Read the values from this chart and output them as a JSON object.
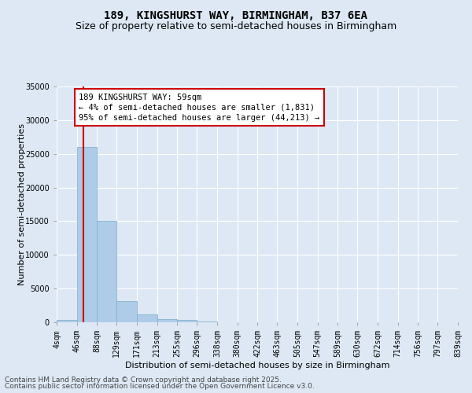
{
  "title_line1": "189, KINGSHURST WAY, BIRMINGHAM, B37 6EA",
  "title_line2": "Size of property relative to semi-detached houses in Birmingham",
  "xlabel": "Distribution of semi-detached houses by size in Birmingham",
  "ylabel": "Number of semi-detached properties",
  "bins": [
    4,
    46,
    88,
    129,
    171,
    213,
    255,
    296,
    338,
    380,
    422,
    463,
    505,
    547,
    589,
    630,
    672,
    714,
    756,
    797,
    839
  ],
  "bin_labels": [
    "4sqm",
    "46sqm",
    "88sqm",
    "129sqm",
    "171sqm",
    "213sqm",
    "255sqm",
    "296sqm",
    "338sqm",
    "380sqm",
    "422sqm",
    "463sqm",
    "505sqm",
    "547sqm",
    "589sqm",
    "630sqm",
    "672sqm",
    "714sqm",
    "756sqm",
    "797sqm",
    "839sqm"
  ],
  "bar_heights": [
    400,
    26000,
    15100,
    3200,
    1150,
    450,
    300,
    100,
    0,
    0,
    0,
    0,
    0,
    0,
    0,
    0,
    0,
    0,
    0,
    0
  ],
  "bar_color": "#aecce8",
  "bar_edge_color": "#7aaac8",
  "ylim": [
    0,
    35000
  ],
  "yticks": [
    0,
    5000,
    10000,
    15000,
    20000,
    25000,
    30000,
    35000
  ],
  "ytick_labels": [
    "0",
    "5000",
    "10000",
    "15000",
    "20000",
    "25000",
    "30000",
    "35000"
  ],
  "property_sqm": 59,
  "red_line_color": "#cc0000",
  "annotation_text_line1": "189 KINGSHURST WAY: 59sqm",
  "annotation_text_line2": "← 4% of semi-detached houses are smaller (1,831)",
  "annotation_text_line3": "95% of semi-detached houses are larger (44,213) →",
  "annotation_box_color": "#ffffff",
  "annotation_box_edge": "#cc0000",
  "bg_color": "#dde8f4",
  "grid_color": "#ffffff",
  "footer_line1": "Contains HM Land Registry data © Crown copyright and database right 2025.",
  "footer_line2": "Contains public sector information licensed under the Open Government Licence v3.0.",
  "title_fontsize": 10,
  "subtitle_fontsize": 9,
  "label_fontsize": 8,
  "tick_fontsize": 7,
  "annotation_fontsize": 7.5,
  "footer_fontsize": 6.5
}
